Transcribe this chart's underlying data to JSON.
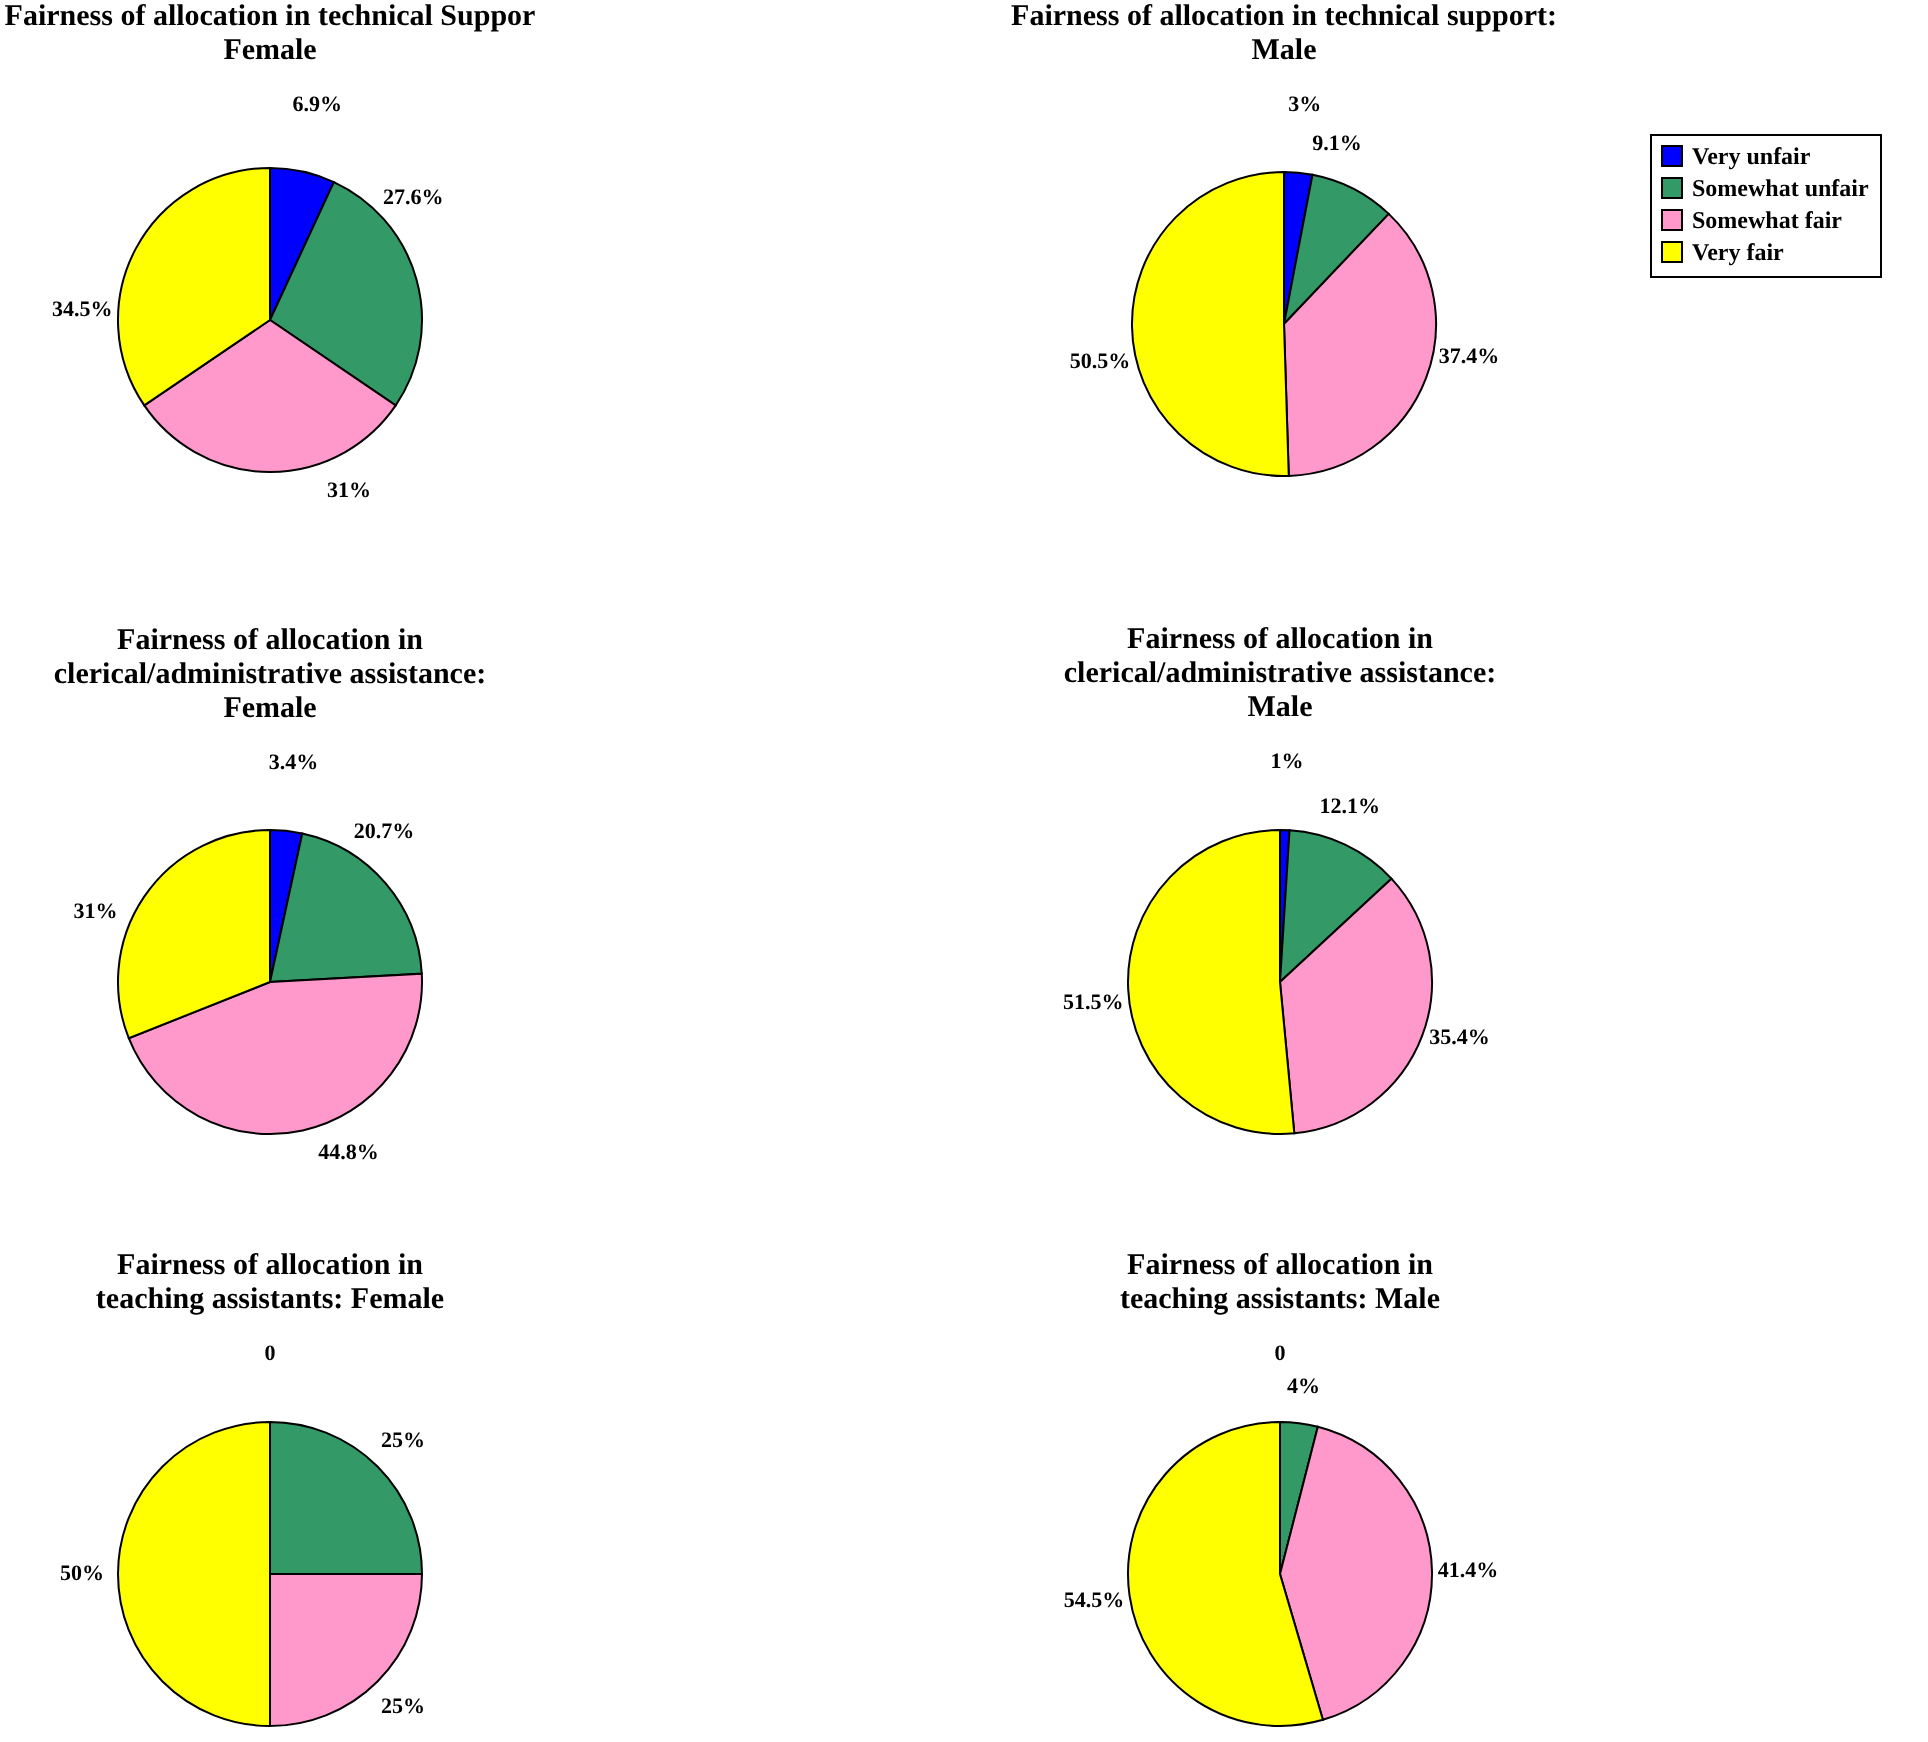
{
  "chart_data": [
    {
      "type": "pie",
      "title": "Fairness of allocation in technical Suppor\nFemale",
      "categories": [
        null,
        null,
        null,
        null
      ],
      "values": [
        6.9,
        27.6,
        31,
        34.5
      ],
      "value_labels": [
        "6.9%",
        "27.6%",
        "31%",
        "34.5%"
      ],
      "colors": [
        "#0000ff",
        "#339966",
        "#ff99cc",
        "#ffff00"
      ]
    },
    {
      "type": "pie",
      "title": "Fairness of allocation in technical support:\nMale",
      "categories": [
        "Very unfair",
        "Somewhat unfair",
        "Somewhat fair",
        "Very fair"
      ],
      "values": [
        3,
        9.1,
        37.4,
        50.5
      ],
      "value_labels": [
        "3%",
        "9.1%",
        "37.4%",
        "50.5%"
      ],
      "colors": [
        "#0000ff",
        "#339966",
        "#ff99cc",
        "#ffff00"
      ],
      "legend": "top right"
    },
    {
      "type": "pie",
      "title": "Fairness of allocation in\nclerical/administrative assistance:\nFemale",
      "categories": [
        null,
        null,
        null,
        null
      ],
      "values": [
        3.4,
        20.7,
        44.8,
        31
      ],
      "value_labels": [
        "3.4%",
        "20.7%",
        "44.8%",
        "31%"
      ],
      "colors": [
        "#0000ff",
        "#339966",
        "#ff99cc",
        "#ffff00"
      ]
    },
    {
      "type": "pie",
      "title": "Fairness of allocation in\nclerical/administrative assistance:\nMale",
      "categories": [
        null,
        null,
        null,
        null
      ],
      "values": [
        1,
        12.1,
        35.4,
        51.5
      ],
      "value_labels": [
        "1%",
        "12.1%",
        "35.4%",
        "51.5%"
      ],
      "colors": [
        "#0000ff",
        "#339966",
        "#ff99cc",
        "#ffff00"
      ]
    },
    {
      "type": "pie",
      "title": "Fairness of allocation in\nteaching assistants: Female",
      "categories": [
        null,
        null,
        null,
        null
      ],
      "values": [
        0,
        25,
        25,
        50
      ],
      "value_labels": [
        "0",
        "25%",
        "25%",
        "50%"
      ],
      "colors": [
        "#0000ff",
        "#339966",
        "#ff99cc",
        "#ffff00"
      ]
    },
    {
      "type": "pie",
      "title": "Fairness of allocation in\nteaching assistants: Male",
      "categories": [
        null,
        null,
        null,
        null
      ],
      "values": [
        0,
        4,
        41.4,
        54.5
      ],
      "value_labels": [
        "0",
        "4%",
        "41.4%",
        "54.5%"
      ],
      "colors": [
        "#0000ff",
        "#339966",
        "#ff99cc",
        "#ffff00"
      ]
    }
  ]
}
